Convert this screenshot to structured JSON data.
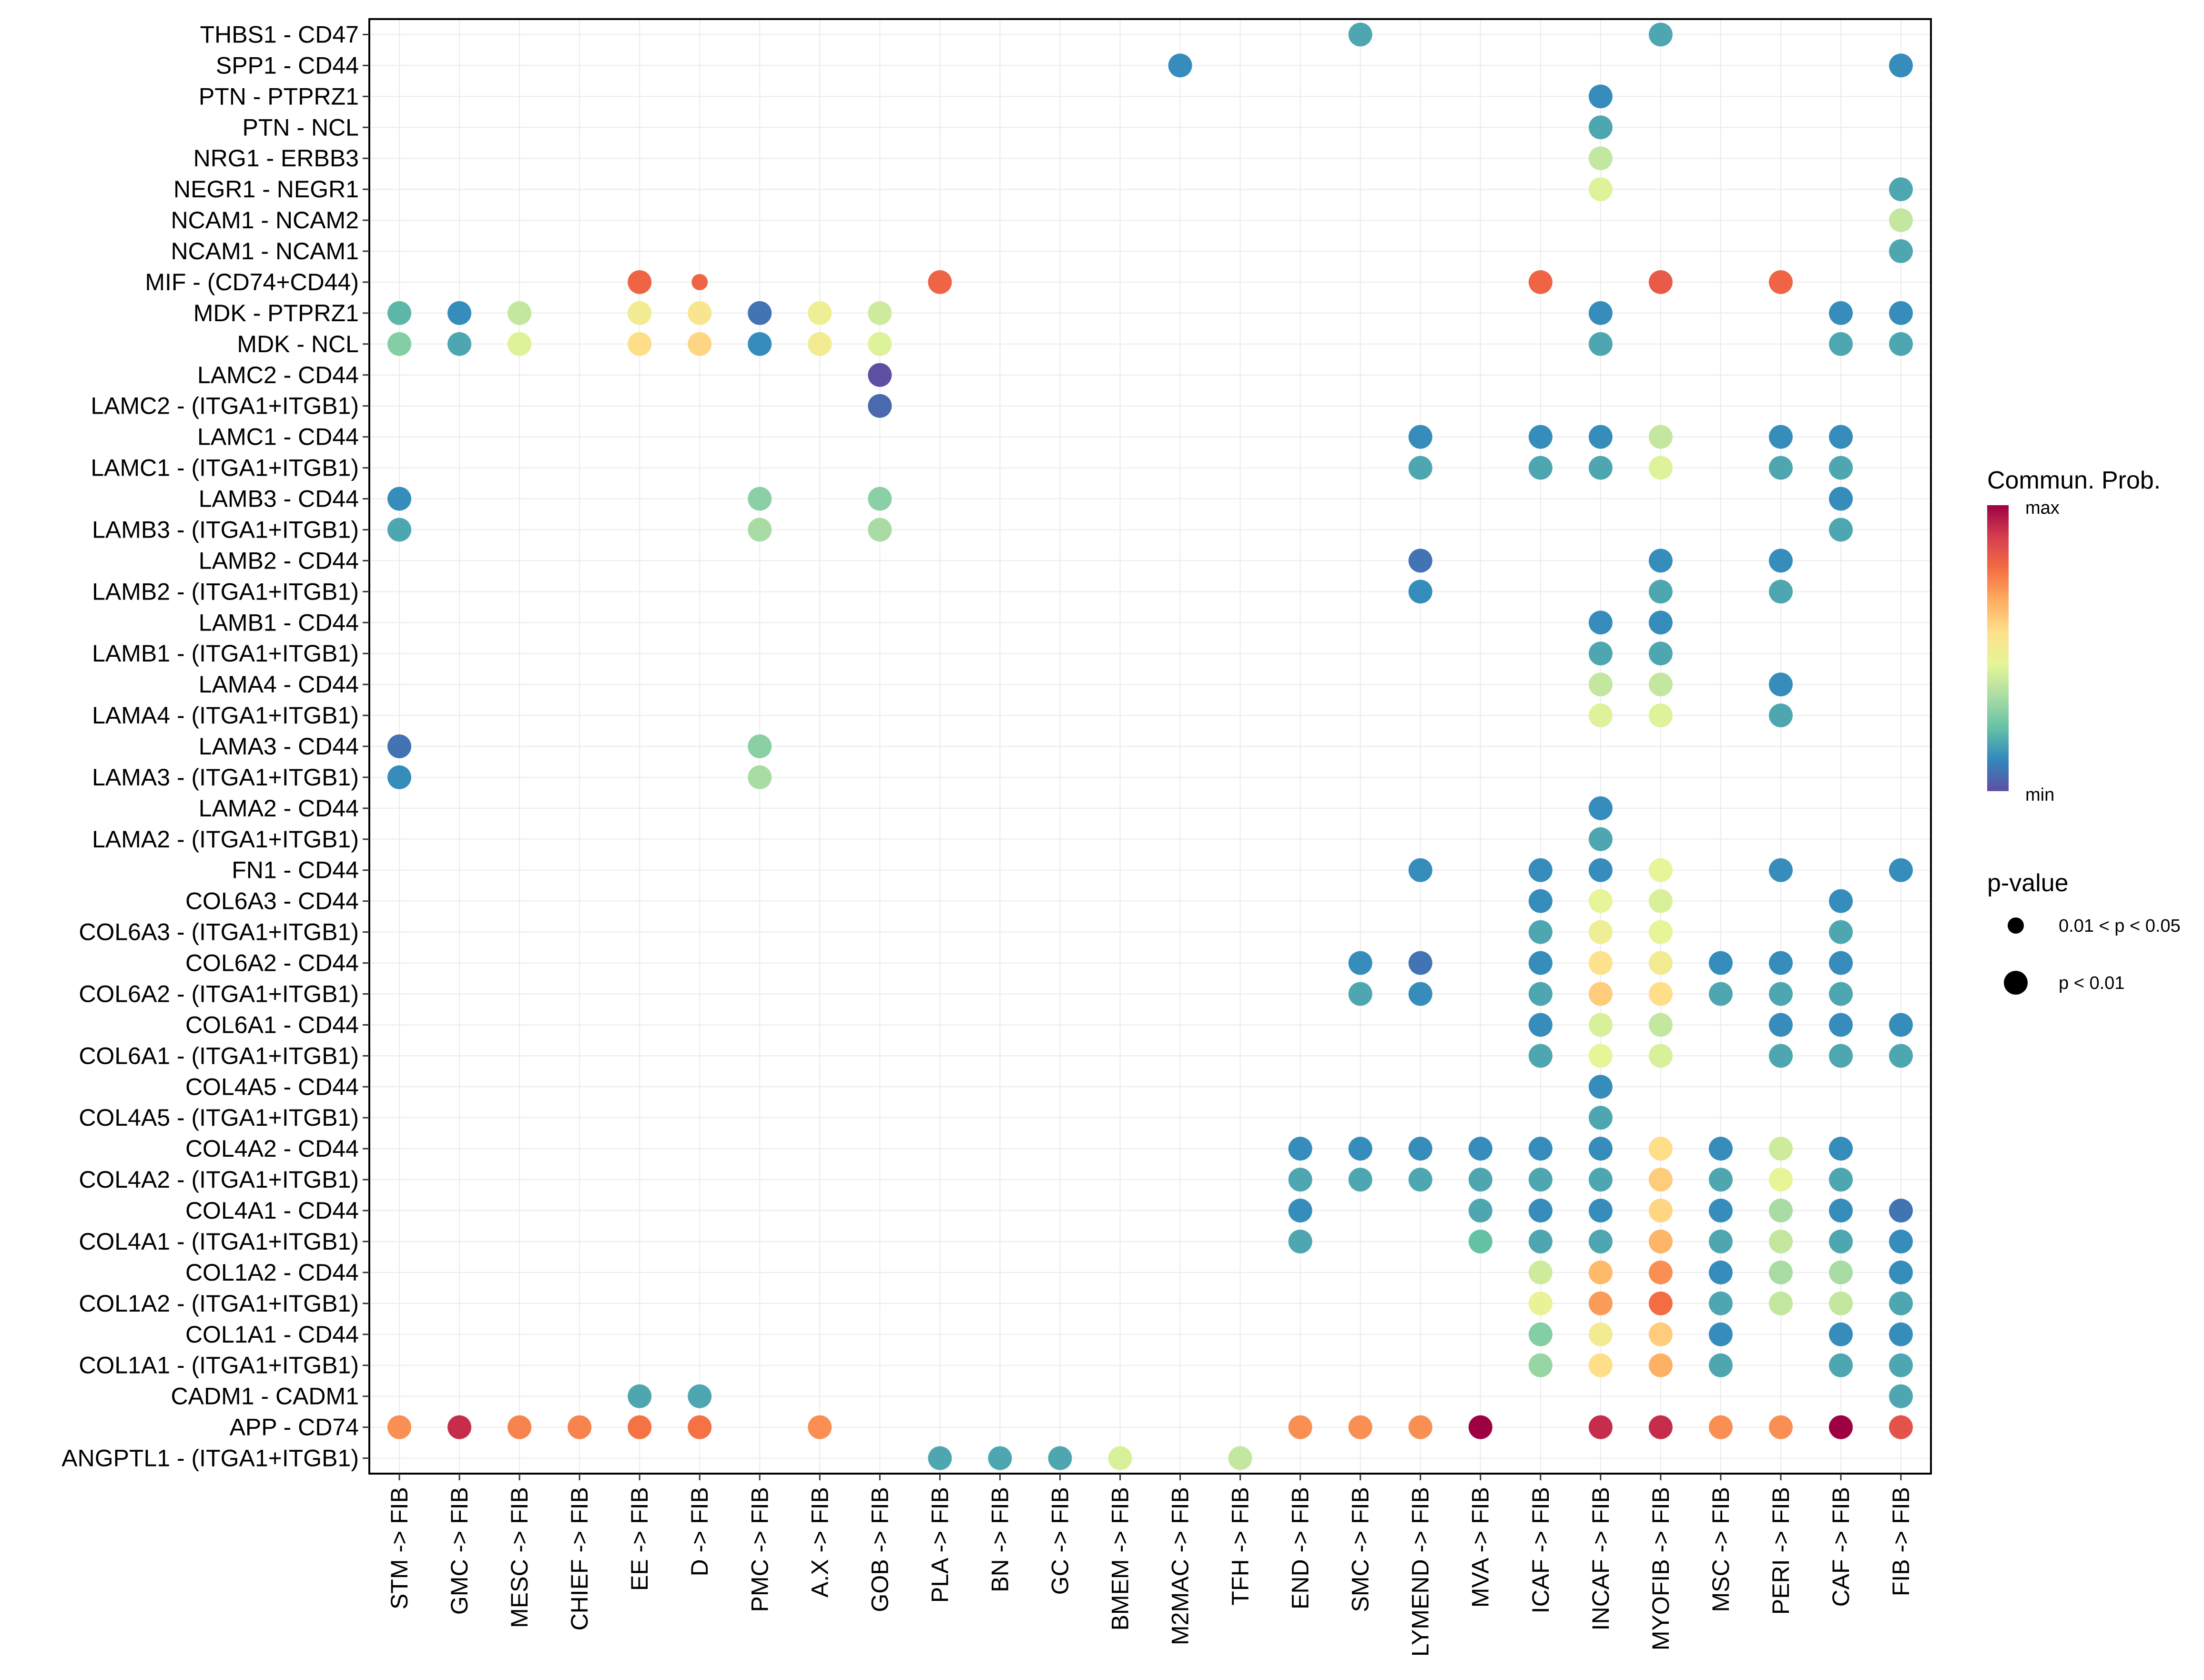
{
  "chart_data": {
    "type": "scatter",
    "subtype": "dot-matrix (bubble) plot",
    "title": "",
    "xlabel": "",
    "ylabel": "",
    "grid": true,
    "legend_position": "right",
    "x_categories": [
      "STM -> FIB",
      "GMC -> FIB",
      "MESC -> FIB",
      "CHIEF -> FIB",
      "EE -> FIB",
      "D -> FIB",
      "PMC -> FIB",
      "A.X -> FIB",
      "GOB -> FIB",
      "PLA -> FIB",
      "BN -> FIB",
      "GC -> FIB",
      "BMEM -> FIB",
      "M2MAC -> FIB",
      "TFH -> FIB",
      "END -> FIB",
      "SMC -> FIB",
      "LYMEND -> FIB",
      "MVA -> FIB",
      "ICAF -> FIB",
      "INCAF -> FIB",
      "MYOFIB -> FIB",
      "MSC -> FIB",
      "PERI -> FIB",
      "CAF -> FIB",
      "FIB -> FIB"
    ],
    "y_categories_top_to_bottom": [
      "THBS1 - CD47",
      "SPP1 - CD44",
      "PTN - PTPRZ1",
      "PTN - NCL",
      "NRG1 - ERBB3",
      "NEGR1 - NEGR1",
      "NCAM1 - NCAM2",
      "NCAM1 - NCAM1",
      "MIF - (CD74+CD44)",
      "MDK - PTPRZ1",
      "MDK - NCL",
      "LAMC2 - CD44",
      "LAMC2 - (ITGA1+ITGB1)",
      "LAMC1 - CD44",
      "LAMC1 - (ITGA1+ITGB1)",
      "LAMB3 - CD44",
      "LAMB3 - (ITGA1+ITGB1)",
      "LAMB2 - CD44",
      "LAMB2 - (ITGA1+ITGB1)",
      "LAMB1 - CD44",
      "LAMB1 - (ITGA1+ITGB1)",
      "LAMA4 - CD44",
      "LAMA4 - (ITGA1+ITGB1)",
      "LAMA3 - CD44",
      "LAMA3 - (ITGA1+ITGB1)",
      "LAMA2 - CD44",
      "LAMA2 - (ITGA1+ITGB1)",
      "FN1 - CD44",
      "COL6A3 - CD44",
      "COL6A3 - (ITGA1+ITGB1)",
      "COL6A2 - CD44",
      "COL6A2 - (ITGA1+ITGB1)",
      "COL6A1 - CD44",
      "COL6A1 - (ITGA1+ITGB1)",
      "COL4A5 - CD44",
      "COL4A5 - (ITGA1+ITGB1)",
      "COL4A2 - CD44",
      "COL4A2 - (ITGA1+ITGB1)",
      "COL4A1 - CD44",
      "COL4A1 - (ITGA1+ITGB1)",
      "COL1A2 - CD44",
      "COL1A2 - (ITGA1+ITGB1)",
      "COL1A1 - CD44",
      "COL1A1 - (ITGA1+ITGB1)",
      "CADM1 - CADM1",
      "APP - CD74",
      "ANGPTL1 - (ITGA1+ITGB1)"
    ],
    "value_scale": {
      "min_label": "min",
      "max_label": "max",
      "note": "values are relative communication probability (0 = min, 1 = max), estimated from color"
    },
    "points_format": [
      "row_index",
      "column_index",
      "relative_prob",
      "pvalue_class"
    ],
    "pvalue_classes": {
      "strong": "p < 0.01",
      "weak": "0.01 < p < 0.05"
    },
    "points": [
      [
        0,
        16,
        0.17,
        "strong"
      ],
      [
        0,
        21,
        0.17,
        "strong"
      ],
      [
        1,
        13,
        0.12,
        "strong"
      ],
      [
        1,
        25,
        0.12,
        "strong"
      ],
      [
        2,
        20,
        0.12,
        "strong"
      ],
      [
        3,
        20,
        0.17,
        "strong"
      ],
      [
        4,
        20,
        0.38,
        "strong"
      ],
      [
        5,
        20,
        0.43,
        "strong"
      ],
      [
        5,
        25,
        0.17,
        "strong"
      ],
      [
        6,
        25,
        0.38,
        "strong"
      ],
      [
        7,
        25,
        0.17,
        "strong"
      ],
      [
        8,
        4,
        0.8,
        "strong"
      ],
      [
        8,
        5,
        0.8,
        "weak"
      ],
      [
        8,
        9,
        0.8,
        "strong"
      ],
      [
        8,
        19,
        0.8,
        "strong"
      ],
      [
        8,
        21,
        0.82,
        "strong"
      ],
      [
        8,
        23,
        0.8,
        "strong"
      ],
      [
        9,
        0,
        0.2,
        "strong"
      ],
      [
        9,
        1,
        0.12,
        "strong"
      ],
      [
        9,
        2,
        0.38,
        "strong"
      ],
      [
        9,
        4,
        0.5,
        "strong"
      ],
      [
        9,
        5,
        0.53,
        "strong"
      ],
      [
        9,
        6,
        0.07,
        "strong"
      ],
      [
        9,
        7,
        0.48,
        "strong"
      ],
      [
        9,
        8,
        0.4,
        "strong"
      ],
      [
        9,
        20,
        0.12,
        "strong"
      ],
      [
        9,
        24,
        0.12,
        "strong"
      ],
      [
        9,
        25,
        0.12,
        "strong"
      ],
      [
        10,
        0,
        0.27,
        "strong"
      ],
      [
        10,
        1,
        0.17,
        "strong"
      ],
      [
        10,
        2,
        0.43,
        "strong"
      ],
      [
        10,
        4,
        0.56,
        "strong"
      ],
      [
        10,
        5,
        0.58,
        "strong"
      ],
      [
        10,
        6,
        0.12,
        "strong"
      ],
      [
        10,
        7,
        0.5,
        "strong"
      ],
      [
        10,
        8,
        0.43,
        "strong"
      ],
      [
        10,
        20,
        0.17,
        "strong"
      ],
      [
        10,
        24,
        0.17,
        "strong"
      ],
      [
        10,
        25,
        0.17,
        "strong"
      ],
      [
        11,
        8,
        0.0,
        "strong"
      ],
      [
        12,
        8,
        0.05,
        "strong"
      ],
      [
        13,
        17,
        0.12,
        "strong"
      ],
      [
        13,
        19,
        0.12,
        "strong"
      ],
      [
        13,
        20,
        0.12,
        "strong"
      ],
      [
        13,
        21,
        0.38,
        "strong"
      ],
      [
        13,
        23,
        0.12,
        "strong"
      ],
      [
        13,
        24,
        0.12,
        "strong"
      ],
      [
        14,
        17,
        0.17,
        "strong"
      ],
      [
        14,
        19,
        0.17,
        "strong"
      ],
      [
        14,
        20,
        0.17,
        "strong"
      ],
      [
        14,
        21,
        0.43,
        "strong"
      ],
      [
        14,
        23,
        0.17,
        "strong"
      ],
      [
        14,
        24,
        0.17,
        "strong"
      ],
      [
        15,
        0,
        0.12,
        "strong"
      ],
      [
        15,
        6,
        0.28,
        "strong"
      ],
      [
        15,
        8,
        0.28,
        "strong"
      ],
      [
        15,
        24,
        0.12,
        "strong"
      ],
      [
        16,
        0,
        0.17,
        "strong"
      ],
      [
        16,
        6,
        0.33,
        "strong"
      ],
      [
        16,
        8,
        0.33,
        "strong"
      ],
      [
        16,
        24,
        0.17,
        "strong"
      ],
      [
        17,
        17,
        0.07,
        "strong"
      ],
      [
        17,
        21,
        0.12,
        "strong"
      ],
      [
        17,
        23,
        0.12,
        "strong"
      ],
      [
        18,
        17,
        0.12,
        "strong"
      ],
      [
        18,
        21,
        0.17,
        "strong"
      ],
      [
        18,
        23,
        0.17,
        "strong"
      ],
      [
        19,
        20,
        0.12,
        "strong"
      ],
      [
        19,
        21,
        0.12,
        "strong"
      ],
      [
        20,
        20,
        0.17,
        "strong"
      ],
      [
        20,
        21,
        0.17,
        "strong"
      ],
      [
        21,
        20,
        0.38,
        "strong"
      ],
      [
        21,
        21,
        0.38,
        "strong"
      ],
      [
        21,
        23,
        0.12,
        "strong"
      ],
      [
        22,
        20,
        0.43,
        "strong"
      ],
      [
        22,
        21,
        0.43,
        "strong"
      ],
      [
        22,
        23,
        0.17,
        "strong"
      ],
      [
        23,
        0,
        0.07,
        "strong"
      ],
      [
        23,
        6,
        0.28,
        "strong"
      ],
      [
        24,
        0,
        0.12,
        "strong"
      ],
      [
        24,
        6,
        0.33,
        "strong"
      ],
      [
        25,
        20,
        0.12,
        "strong"
      ],
      [
        26,
        20,
        0.17,
        "strong"
      ],
      [
        27,
        17,
        0.12,
        "strong"
      ],
      [
        27,
        19,
        0.12,
        "strong"
      ],
      [
        27,
        20,
        0.12,
        "strong"
      ],
      [
        27,
        21,
        0.45,
        "strong"
      ],
      [
        27,
        23,
        0.12,
        "strong"
      ],
      [
        27,
        25,
        0.12,
        "strong"
      ],
      [
        28,
        19,
        0.12,
        "strong"
      ],
      [
        28,
        20,
        0.45,
        "strong"
      ],
      [
        28,
        21,
        0.42,
        "strong"
      ],
      [
        28,
        24,
        0.12,
        "strong"
      ],
      [
        29,
        19,
        0.17,
        "strong"
      ],
      [
        29,
        20,
        0.48,
        "strong"
      ],
      [
        29,
        21,
        0.45,
        "strong"
      ],
      [
        29,
        24,
        0.17,
        "strong"
      ],
      [
        30,
        16,
        0.12,
        "strong"
      ],
      [
        30,
        17,
        0.07,
        "strong"
      ],
      [
        30,
        19,
        0.12,
        "strong"
      ],
      [
        30,
        20,
        0.55,
        "strong"
      ],
      [
        30,
        21,
        0.5,
        "strong"
      ],
      [
        30,
        22,
        0.12,
        "strong"
      ],
      [
        30,
        23,
        0.12,
        "strong"
      ],
      [
        30,
        24,
        0.12,
        "strong"
      ],
      [
        31,
        16,
        0.17,
        "strong"
      ],
      [
        31,
        17,
        0.12,
        "strong"
      ],
      [
        31,
        19,
        0.17,
        "strong"
      ],
      [
        31,
        20,
        0.6,
        "strong"
      ],
      [
        31,
        21,
        0.56,
        "strong"
      ],
      [
        31,
        22,
        0.17,
        "strong"
      ],
      [
        31,
        23,
        0.17,
        "strong"
      ],
      [
        31,
        24,
        0.17,
        "strong"
      ],
      [
        32,
        19,
        0.12,
        "strong"
      ],
      [
        32,
        20,
        0.42,
        "strong"
      ],
      [
        32,
        21,
        0.38,
        "strong"
      ],
      [
        32,
        23,
        0.12,
        "strong"
      ],
      [
        32,
        24,
        0.12,
        "strong"
      ],
      [
        32,
        25,
        0.12,
        "strong"
      ],
      [
        33,
        19,
        0.17,
        "strong"
      ],
      [
        33,
        20,
        0.45,
        "strong"
      ],
      [
        33,
        21,
        0.42,
        "strong"
      ],
      [
        33,
        23,
        0.17,
        "strong"
      ],
      [
        33,
        24,
        0.17,
        "strong"
      ],
      [
        33,
        25,
        0.17,
        "strong"
      ],
      [
        34,
        20,
        0.12,
        "strong"
      ],
      [
        35,
        20,
        0.17,
        "strong"
      ],
      [
        36,
        15,
        0.12,
        "strong"
      ],
      [
        36,
        16,
        0.12,
        "strong"
      ],
      [
        36,
        17,
        0.12,
        "strong"
      ],
      [
        36,
        18,
        0.12,
        "strong"
      ],
      [
        36,
        19,
        0.12,
        "strong"
      ],
      [
        36,
        20,
        0.12,
        "strong"
      ],
      [
        36,
        21,
        0.56,
        "strong"
      ],
      [
        36,
        22,
        0.12,
        "strong"
      ],
      [
        36,
        23,
        0.4,
        "strong"
      ],
      [
        36,
        24,
        0.12,
        "strong"
      ],
      [
        37,
        15,
        0.17,
        "strong"
      ],
      [
        37,
        16,
        0.17,
        "strong"
      ],
      [
        37,
        17,
        0.17,
        "strong"
      ],
      [
        37,
        18,
        0.17,
        "strong"
      ],
      [
        37,
        19,
        0.17,
        "strong"
      ],
      [
        37,
        20,
        0.17,
        "strong"
      ],
      [
        37,
        21,
        0.6,
        "strong"
      ],
      [
        37,
        22,
        0.17,
        "strong"
      ],
      [
        37,
        23,
        0.45,
        "strong"
      ],
      [
        37,
        24,
        0.17,
        "strong"
      ],
      [
        38,
        15,
        0.12,
        "strong"
      ],
      [
        38,
        18,
        0.17,
        "strong"
      ],
      [
        38,
        19,
        0.12,
        "strong"
      ],
      [
        38,
        20,
        0.12,
        "strong"
      ],
      [
        38,
        21,
        0.58,
        "strong"
      ],
      [
        38,
        22,
        0.12,
        "strong"
      ],
      [
        38,
        23,
        0.33,
        "strong"
      ],
      [
        38,
        24,
        0.12,
        "strong"
      ],
      [
        38,
        25,
        0.07,
        "strong"
      ],
      [
        39,
        15,
        0.17,
        "strong"
      ],
      [
        39,
        18,
        0.22,
        "strong"
      ],
      [
        39,
        19,
        0.17,
        "strong"
      ],
      [
        39,
        20,
        0.17,
        "strong"
      ],
      [
        39,
        21,
        0.65,
        "strong"
      ],
      [
        39,
        22,
        0.17,
        "strong"
      ],
      [
        39,
        23,
        0.38,
        "strong"
      ],
      [
        39,
        24,
        0.17,
        "strong"
      ],
      [
        39,
        25,
        0.12,
        "strong"
      ],
      [
        40,
        19,
        0.4,
        "strong"
      ],
      [
        40,
        20,
        0.64,
        "strong"
      ],
      [
        40,
        21,
        0.72,
        "strong"
      ],
      [
        40,
        22,
        0.12,
        "strong"
      ],
      [
        40,
        23,
        0.33,
        "strong"
      ],
      [
        40,
        24,
        0.33,
        "strong"
      ],
      [
        40,
        25,
        0.12,
        "strong"
      ],
      [
        41,
        19,
        0.46,
        "strong"
      ],
      [
        41,
        20,
        0.7,
        "strong"
      ],
      [
        41,
        21,
        0.78,
        "strong"
      ],
      [
        41,
        22,
        0.17,
        "strong"
      ],
      [
        41,
        23,
        0.38,
        "strong"
      ],
      [
        41,
        24,
        0.38,
        "strong"
      ],
      [
        41,
        25,
        0.17,
        "strong"
      ],
      [
        42,
        19,
        0.27,
        "strong"
      ],
      [
        42,
        20,
        0.5,
        "strong"
      ],
      [
        42,
        21,
        0.6,
        "strong"
      ],
      [
        42,
        22,
        0.12,
        "strong"
      ],
      [
        42,
        24,
        0.12,
        "strong"
      ],
      [
        42,
        25,
        0.12,
        "strong"
      ],
      [
        43,
        19,
        0.3,
        "strong"
      ],
      [
        43,
        20,
        0.56,
        "strong"
      ],
      [
        43,
        21,
        0.66,
        "strong"
      ],
      [
        43,
        22,
        0.17,
        "strong"
      ],
      [
        43,
        24,
        0.17,
        "strong"
      ],
      [
        43,
        25,
        0.17,
        "strong"
      ],
      [
        44,
        4,
        0.17,
        "strong"
      ],
      [
        44,
        5,
        0.17,
        "strong"
      ],
      [
        44,
        25,
        0.17,
        "strong"
      ],
      [
        45,
        0,
        0.72,
        "strong"
      ],
      [
        45,
        1,
        0.92,
        "strong"
      ],
      [
        45,
        2,
        0.74,
        "strong"
      ],
      [
        45,
        3,
        0.74,
        "strong"
      ],
      [
        45,
        4,
        0.77,
        "strong"
      ],
      [
        45,
        5,
        0.77,
        "strong"
      ],
      [
        45,
        7,
        0.72,
        "strong"
      ],
      [
        45,
        15,
        0.72,
        "strong"
      ],
      [
        45,
        16,
        0.72,
        "strong"
      ],
      [
        45,
        17,
        0.72,
        "strong"
      ],
      [
        45,
        18,
        1.0,
        "strong"
      ],
      [
        45,
        20,
        0.92,
        "strong"
      ],
      [
        45,
        21,
        0.92,
        "strong"
      ],
      [
        45,
        22,
        0.72,
        "strong"
      ],
      [
        45,
        23,
        0.72,
        "strong"
      ],
      [
        45,
        24,
        1.0,
        "strong"
      ],
      [
        45,
        25,
        0.84,
        "strong"
      ],
      [
        46,
        9,
        0.17,
        "strong"
      ],
      [
        46,
        10,
        0.17,
        "strong"
      ],
      [
        46,
        11,
        0.17,
        "strong"
      ],
      [
        46,
        12,
        0.42,
        "strong"
      ],
      [
        46,
        14,
        0.38,
        "strong"
      ]
    ]
  },
  "legend": {
    "color_title": "Commun. Prob.",
    "color_max_label": "max",
    "color_min_label": "min",
    "size_title": "p-value",
    "size_items": [
      "0.01 < p < 0.05",
      "p < 0.01"
    ],
    "palette": [
      "#5E4FA2",
      "#3288BD",
      "#66C2A5",
      "#ABDDA4",
      "#E6F598",
      "#FEE08B",
      "#FDAE61",
      "#F46D43",
      "#D53E4F",
      "#9E0142"
    ]
  }
}
